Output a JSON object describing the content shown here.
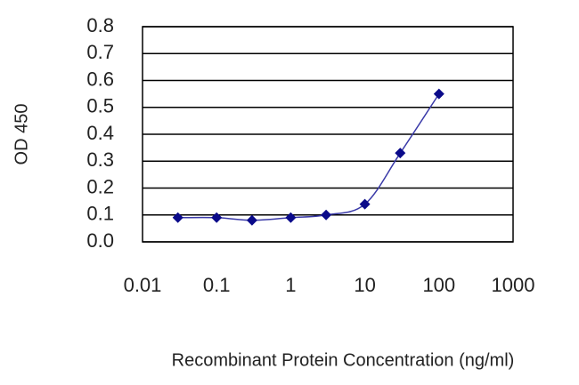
{
  "chart_data": {
    "type": "line",
    "x_label": "Recombinant Protein Concentration (ng/ml)",
    "y_label": "OD 450",
    "x_scale": "log",
    "xlim": [
      0.01,
      1000
    ],
    "xticks": [
      0.01,
      0.1,
      1,
      10,
      100,
      1000
    ],
    "ylim": [
      0,
      0.8
    ],
    "yticks": [
      {
        "value": 0,
        "label": "0.0"
      },
      0.1,
      0.2,
      0.3,
      0.4,
      0.5,
      0.6,
      0.7,
      0.8
    ],
    "grid": true,
    "line_color": "#3a3aa8",
    "marker_color": "#0a0a8a",
    "x": [
      0.03,
      0.1,
      0.3,
      1,
      3,
      10,
      30,
      100
    ],
    "values": [
      0.09,
      0.09,
      0.08,
      0.09,
      0.1,
      0.14,
      0.33,
      0.55
    ]
  }
}
